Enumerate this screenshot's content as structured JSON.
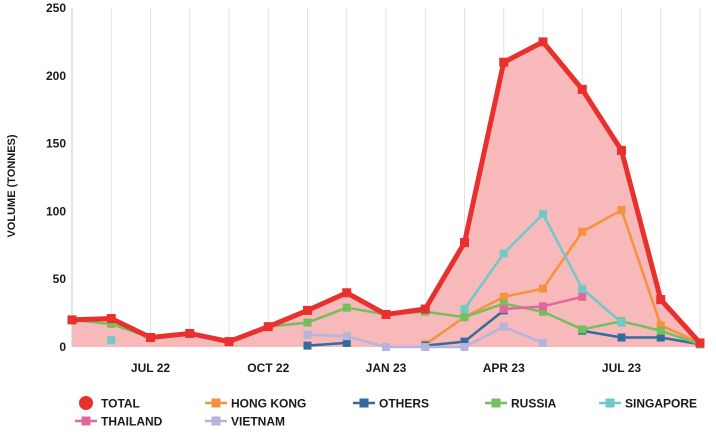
{
  "chart_data": {
    "type": "line",
    "title": "",
    "xlabel": "",
    "ylabel": "VOLUME (TONNES)",
    "ylim": [
      0,
      250
    ],
    "yticks": [
      0,
      50,
      100,
      150,
      200,
      250
    ],
    "grid": "vertical",
    "legend_position": "bottom",
    "x": [
      "2022-05",
      "2022-06",
      "2022-07",
      "2022-08",
      "2022-09",
      "2022-10",
      "2022-11",
      "2022-12",
      "2023-01",
      "2023-02",
      "2023-03",
      "2023-04",
      "2023-05",
      "2023-06",
      "2023-07",
      "2023-08",
      "2023-09"
    ],
    "xtick_labels": [
      {
        "label": "JUL 22",
        "x": "2022-07"
      },
      {
        "label": "OCT 22",
        "x": "2022-10"
      },
      {
        "label": "JAN 23",
        "x": "2023-01"
      },
      {
        "label": "APR 23",
        "x": "2023-04"
      },
      {
        "label": "JUL 23",
        "x": "2023-07"
      }
    ],
    "series": [
      {
        "name": "TOTAL",
        "color": "#e8302e",
        "fill": "#f7b9b9",
        "values": [
          20,
          21,
          7,
          10,
          4,
          15,
          27,
          40,
          24,
          28,
          77,
          210,
          225,
          190,
          145,
          35,
          3
        ]
      },
      {
        "name": "HONG KONG",
        "color": "#f5923e",
        "values": [
          null,
          null,
          null,
          null,
          null,
          null,
          null,
          null,
          null,
          2,
          22,
          37,
          43,
          85,
          101,
          16,
          3
        ]
      },
      {
        "name": "OTHERS",
        "color": "#336b9e",
        "values": [
          null,
          null,
          null,
          null,
          null,
          null,
          1,
          3,
          null,
          1,
          4,
          27,
          null,
          12,
          7,
          7,
          2
        ]
      },
      {
        "name": "RUSSIA",
        "color": "#72c05b",
        "values": [
          20,
          17,
          7,
          10,
          4,
          15,
          18,
          29,
          24,
          26,
          22,
          32,
          26,
          13,
          19,
          12,
          2
        ]
      },
      {
        "name": "SINGAPORE",
        "color": "#6ec9c9",
        "values": [
          null,
          5,
          null,
          null,
          null,
          null,
          null,
          null,
          null,
          null,
          28,
          69,
          98,
          43,
          18,
          null,
          null
        ]
      },
      {
        "name": "THAILAND",
        "color": "#e0689e",
        "values": [
          null,
          null,
          null,
          null,
          null,
          null,
          null,
          null,
          null,
          null,
          null,
          28,
          30,
          37,
          null,
          null,
          null
        ]
      },
      {
        "name": "VIETNAM",
        "color": "#b4b4de",
        "values": [
          null,
          null,
          null,
          null,
          null,
          null,
          9,
          8,
          0,
          0,
          0,
          15,
          3,
          null,
          null,
          null,
          null
        ]
      }
    ]
  }
}
